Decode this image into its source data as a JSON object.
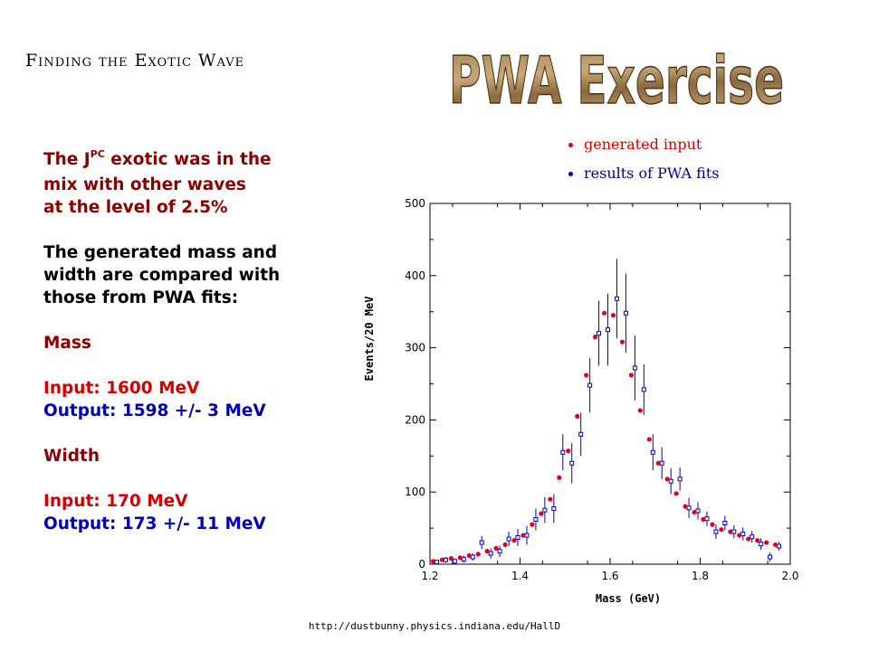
{
  "slide": {
    "subtitle": "Finding the Exotic Wave",
    "banner": "PWA Exercise",
    "url": "http://dustbunny.physics.indiana.edu/HallD"
  },
  "text": {
    "intro_line1_pre": "The J",
    "intro_line1_sup": "PC",
    "intro_line1_post": " exotic was in the",
    "intro_line2": "mix with other waves",
    "intro_line3": "at the level of 2.5%",
    "compare_line1": "The generated mass and",
    "compare_line2": "width are compared with",
    "compare_line3": "those from PWA fits:",
    "mass_heading": "Mass",
    "mass_input": "Input:  1600 MeV",
    "mass_output": "Output: 1598 +/- 3 MeV",
    "width_heading": "Width",
    "width_input": "Input: 170 MeV",
    "width_output": "Output:  173 +/- 11 MeV"
  },
  "legend": {
    "generated": "generated input",
    "fits": "results of PWA fits"
  },
  "colors": {
    "generated": "#e00020",
    "fits": "#0000b4",
    "text_dark_red": "#8b0000",
    "text_red": "#d40000",
    "text_blue": "#0000b4"
  },
  "chart_data": {
    "type": "scatter",
    "xlabel": "Mass  (GeV)",
    "ylabel": "Events/20 MeV",
    "xlim": [
      1.2,
      2.0
    ],
    "ylim": [
      0,
      500
    ],
    "x_ticks": [
      "1.2",
      "1.4",
      "1.6",
      "1.8",
      "2.0"
    ],
    "y_ticks": [
      "0",
      "100",
      "200",
      "300",
      "400",
      "500"
    ],
    "grid": false,
    "legend_position": "top-right",
    "series": [
      {
        "name": "generated input",
        "marker": "filled-circle",
        "x": [
          1.21,
          1.23,
          1.25,
          1.27,
          1.29,
          1.31,
          1.33,
          1.35,
          1.37,
          1.39,
          1.41,
          1.43,
          1.45,
          1.47,
          1.49,
          1.51,
          1.53,
          1.55,
          1.57,
          1.59,
          1.61,
          1.63,
          1.65,
          1.67,
          1.69,
          1.71,
          1.73,
          1.75,
          1.77,
          1.79,
          1.81,
          1.83,
          1.85,
          1.87,
          1.89,
          1.91,
          1.93,
          1.95,
          1.97
        ],
        "y": [
          4,
          6,
          8,
          9,
          12,
          14,
          18,
          22,
          27,
          33,
          40,
          55,
          70,
          90,
          120,
          157,
          205,
          262,
          315,
          348,
          345,
          308,
          262,
          213,
          173,
          140,
          118,
          98,
          80,
          72,
          62,
          55,
          48,
          45,
          40,
          35,
          33,
          30,
          27
        ]
      },
      {
        "name": "results of PWA fits",
        "marker": "open-square",
        "x": [
          1.21,
          1.23,
          1.25,
          1.27,
          1.29,
          1.31,
          1.33,
          1.35,
          1.37,
          1.39,
          1.41,
          1.43,
          1.45,
          1.47,
          1.49,
          1.51,
          1.53,
          1.55,
          1.57,
          1.59,
          1.61,
          1.63,
          1.65,
          1.67,
          1.69,
          1.71,
          1.73,
          1.75,
          1.77,
          1.79,
          1.81,
          1.83,
          1.85,
          1.87,
          1.89,
          1.91,
          1.93,
          1.95,
          1.97
        ],
        "y": [
          3,
          6,
          4,
          7,
          10,
          30,
          15,
          18,
          35,
          37,
          40,
          62,
          75,
          77,
          155,
          140,
          180,
          248,
          320,
          325,
          368,
          348,
          272,
          242,
          155,
          140,
          115,
          118,
          78,
          74,
          63,
          45,
          57,
          45,
          42,
          38,
          28,
          10,
          25
        ],
        "err": [
          3,
          4,
          4,
          5,
          5,
          9,
          7,
          8,
          10,
          12,
          13,
          15,
          18,
          20,
          25,
          28,
          30,
          38,
          45,
          50,
          55,
          55,
          45,
          35,
          25,
          22,
          18,
          16,
          14,
          12,
          10,
          10,
          10,
          9,
          9,
          8,
          8,
          6,
          6
        ]
      }
    ]
  }
}
